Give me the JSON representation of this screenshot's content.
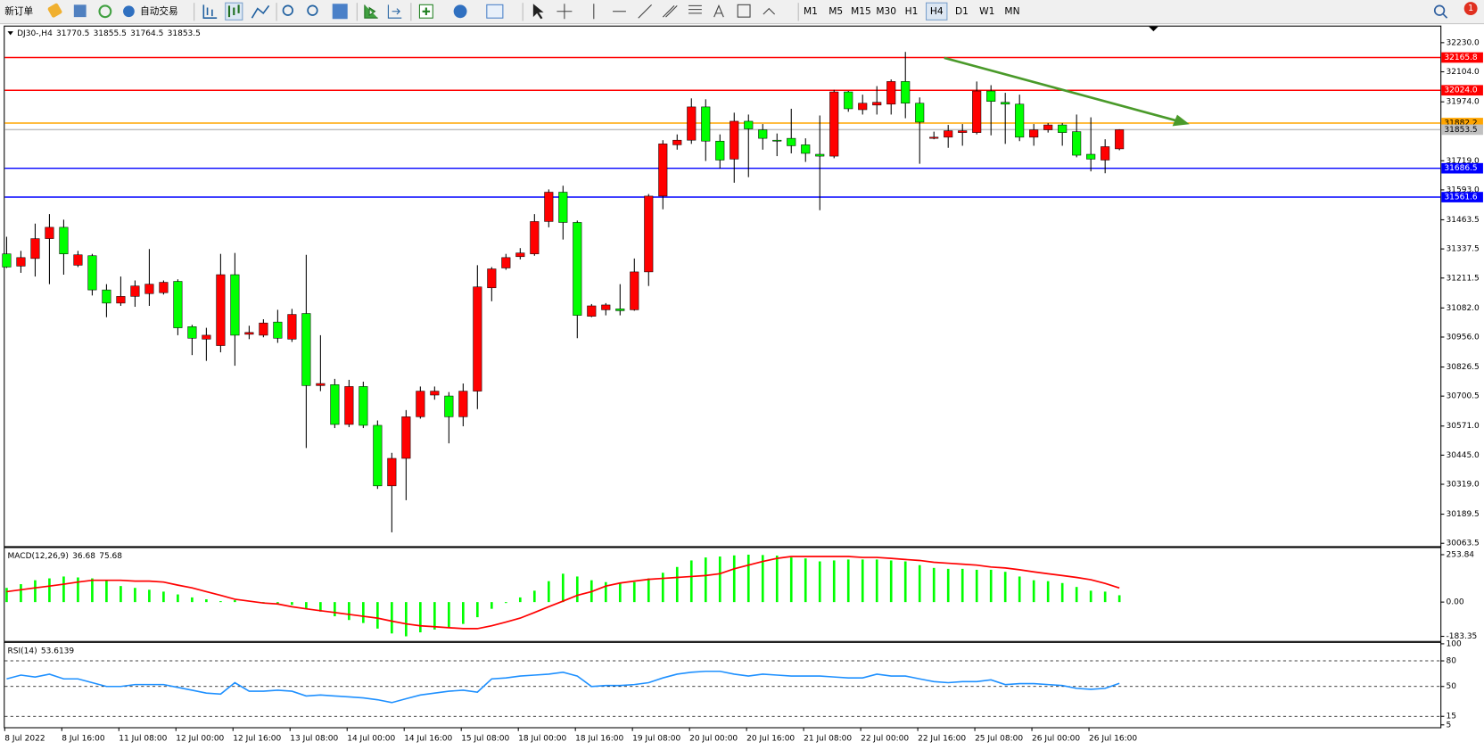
{
  "toolbar": {
    "buttons": [
      "新订单",
      "自动交易"
    ],
    "timeframes": [
      "M1",
      "M5",
      "M15",
      "M30",
      "H1",
      "H4",
      "D1",
      "W1",
      "MN"
    ],
    "active_timeframe": "H4",
    "notifications": 1
  },
  "chart_data": [
    {
      "type": "candlestick",
      "title": "DJ30-,H4",
      "categories": [
        "8 Jul 2022",
        null,
        null,
        null,
        "8 Jul 16:00",
        null,
        null,
        null,
        "11 Jul 08:00",
        null,
        null,
        null,
        "12 Jul 00:00",
        null,
        null,
        null,
        "12 Jul 16:00",
        null,
        null,
        null,
        "13 Jul 08:00",
        null,
        null,
        null,
        "14 Jul 00:00",
        null,
        null,
        null,
        "14 Jul 16:00",
        null,
        null,
        null,
        "15 Jul 08:00",
        null,
        null,
        null,
        "18 Jul 00:00",
        null,
        null,
        null,
        "18 Jul 16:00",
        null,
        null,
        null,
        "19 Jul 08:00",
        null,
        null,
        null,
        "20 Jul 00:00",
        null,
        null,
        null,
        "20 Jul 16:00",
        null,
        null,
        null,
        "21 Jul 08:00",
        null,
        null,
        null,
        "22 Jul 00:00",
        null,
        null,
        null,
        "22 Jul 16:00",
        null,
        null,
        null,
        "25 Jul 08:00",
        null,
        null,
        null,
        "26 Jul 00:00",
        null,
        null,
        null,
        "26 Jul 16:00",
        null,
        null
      ],
      "open": [
        31316,
        31263,
        31296,
        31382,
        31431,
        31267,
        31308,
        31160,
        31103,
        31132,
        31144,
        31148,
        31197,
        31001,
        30947,
        30919,
        31226,
        30968,
        30964,
        31021,
        30947,
        31058,
        30746,
        30750,
        30578,
        30742,
        30574,
        30312,
        30431,
        30611,
        30705,
        30701,
        30611,
        30722,
        31169,
        31255,
        31304,
        31316,
        31456,
        31583,
        31452,
        31046,
        31074,
        31078,
        31074,
        31238,
        31566,
        31788,
        31808,
        31952,
        31804,
        31726,
        31890,
        31853,
        31808,
        31816,
        31788,
        31747,
        31739,
        32017,
        31940,
        31960,
        31964,
        32062,
        31968,
        31816,
        31821,
        31841,
        31841,
        32021,
        31972,
        31964,
        31821,
        31853,
        31874,
        31845,
        31747,
        31722,
        31770.5
      ],
      "high": [
        31390,
        31329,
        31447,
        31488,
        31464,
        31329,
        31316,
        31185,
        31218,
        31201,
        31337,
        31201,
        31206,
        31009,
        30996,
        31316,
        31320,
        31005,
        31033,
        31074,
        31078,
        31312,
        30964,
        30775,
        30771,
        30763,
        30595,
        30455,
        30640,
        30742,
        30742,
        30718,
        30755,
        31267,
        31259,
        31316,
        31341,
        31488,
        31595,
        31611,
        31460,
        31099,
        31103,
        31185,
        31296,
        31575,
        31808,
        31833,
        31989,
        31985,
        31833,
        31927,
        31919,
        31878,
        31837,
        31944,
        31816,
        31915,
        32026,
        32021,
        32005,
        32042,
        32071,
        32190,
        31993,
        31845,
        31874,
        31878,
        32062,
        32046,
        32013,
        32005,
        31878,
        31882,
        31882,
        31919,
        31907,
        31812,
        31855.5
      ],
      "low": [
        31255,
        31234,
        31218,
        31185,
        31226,
        31259,
        31136,
        31042,
        31091,
        31087,
        31091,
        31140,
        30964,
        30878,
        30853,
        30890,
        30832,
        30947,
        30955,
        30931,
        30935,
        30476,
        30722,
        30562,
        30566,
        30562,
        30299,
        30111,
        30250,
        30603,
        30685,
        30496,
        30570,
        30644,
        31111,
        31247,
        31292,
        31308,
        31431,
        31378,
        30951,
        31042,
        31050,
        31050,
        31070,
        31177,
        31509,
        31767,
        31792,
        31718,
        31685,
        31624,
        31648,
        31767,
        31739,
        31751,
        31714,
        31505,
        31730,
        31931,
        31919,
        31919,
        31919,
        31903,
        31706,
        31812,
        31775,
        31784,
        31833,
        31829,
        31792,
        31804,
        31784,
        31841,
        31784,
        31734,
        31673,
        31665,
        31764.5
      ],
      "close": [
        31259,
        31300,
        31382,
        31431,
        31316,
        31312,
        31160,
        31103,
        31132,
        31177,
        31185,
        31193,
        30996,
        30951,
        30964,
        31226,
        30964,
        30976,
        31017,
        30951,
        31054,
        30746,
        30755,
        30578,
        30742,
        30574,
        30312,
        30431,
        30611,
        30722,
        30722,
        30611,
        30722,
        31173,
        31251,
        31300,
        31320,
        31456,
        31583,
        31452,
        31050,
        31091,
        31095,
        31070,
        31238,
        31566,
        31792,
        31808,
        31952,
        31804,
        31722,
        31890,
        31857,
        31816,
        31804,
        31784,
        31751,
        31739,
        32017,
        31944,
        31968,
        31972,
        32062,
        31968,
        31886,
        31821,
        31849,
        31849,
        32021,
        31976,
        31964,
        31821,
        31853,
        31874,
        31841,
        31743,
        31726,
        31780,
        31853.5
      ],
      "up_color": "#ff0000",
      "down_color": "#00ff00",
      "ylim": [
        30051.2,
        32299.8
      ],
      "yticks": [
        {
          "value": 32230,
          "label": "32230.0"
        },
        {
          "value": 32104,
          "label": "32104.0"
        },
        {
          "value": 31974,
          "label": "31974.0"
        },
        {
          "value": 31719,
          "label": "31719.0"
        },
        {
          "value": 31593,
          "label": "31593.0"
        },
        31463.5,
        31337.5,
        31211.5,
        {
          "value": 31082,
          "label": "31082.0"
        },
        {
          "value": 30956,
          "label": "30956.0"
        },
        30826.5,
        30700.5,
        {
          "value": 30571,
          "label": "30571.0"
        },
        {
          "value": 30445,
          "label": "30445.0"
        },
        {
          "value": 30319,
          "label": "30319.0"
        },
        30189.5,
        30063.5
      ],
      "price_lines": [
        {
          "value": 32165.8,
          "color": "#ff0000"
        },
        {
          "value": 32024,
          "label": "32024.0",
          "color": "#ff0000"
        },
        {
          "value": 31882.2,
          "color": "#ffa500"
        },
        {
          "value": 31853.5,
          "color": "#c0c0c0"
        },
        {
          "value": 31686.5,
          "color": "#0000ff"
        },
        {
          "value": 31561.6,
          "color": "#0000ff"
        }
      ]
    },
    {
      "type": "macd",
      "title": "MACD(12,26,9)",
      "values": [
        76,
        96,
        117,
        127,
        137,
        132,
        127,
        117,
        86,
        76,
        66,
        56,
        41,
        25,
        15,
        5,
        10,
        0,
        -5,
        -10,
        -15,
        -36,
        -51,
        -76,
        -96,
        -112,
        -142,
        -168,
        -183.35,
        -162,
        -147,
        -137,
        -117,
        -81,
        -36,
        -5,
        25,
        61,
        112,
        152,
        137,
        117,
        107,
        102,
        107,
        127,
        157,
        188,
        223,
        239,
        244,
        250,
        253.84,
        252,
        249,
        239,
        234,
        218,
        223,
        228,
        228,
        228,
        223,
        218,
        198,
        183,
        178,
        178,
        173,
        173,
        162,
        137,
        117,
        112,
        102,
        81,
        61,
        56,
        36.68
      ],
      "signal": [
        56,
        66,
        76,
        86,
        96,
        107,
        117,
        117,
        117,
        112,
        112,
        107,
        91,
        76,
        56,
        36,
        15,
        5,
        -5,
        -10,
        -25,
        -36,
        -46,
        -56,
        -66,
        -76,
        -86,
        -102,
        -117,
        -127,
        -132,
        -137,
        -142,
        -142,
        -127,
        -107,
        -86,
        -56,
        -25,
        5,
        36,
        56,
        86,
        102,
        112,
        122,
        127,
        132,
        137,
        142,
        152,
        178,
        198,
        218,
        234,
        244,
        244,
        244,
        244,
        244,
        239,
        239,
        234,
        228,
        223,
        213,
        208,
        203,
        198,
        188,
        183,
        173,
        162,
        152,
        142,
        132,
        120,
        100,
        75.68
      ],
      "color": "#00ff00",
      "signal_color": "#ff0000",
      "ylim": [
        -208.2,
        289.4
      ],
      "yticks": [
        253.84,
        {
          "value": 0,
          "label": "0.00"
        },
        -183.35
      ]
    },
    {
      "type": "rsi",
      "title": "RSI(14)",
      "values": [
        58.9,
        63.3,
        61.1,
        64.4,
        58.9,
        58.9,
        54.4,
        50.0,
        50.0,
        52.2,
        52.2,
        52.2,
        48.9,
        45.6,
        42.2,
        41.1,
        54.4,
        44.4,
        44.4,
        45.6,
        44.4,
        38.9,
        40.0,
        38.9,
        37.8,
        36.7,
        34.4,
        31.1,
        35.6,
        40.0,
        42.2,
        44.4,
        45.6,
        43.3,
        58.9,
        60.0,
        62.2,
        63.3,
        64.4,
        66.7,
        62.2,
        50.0,
        51.1,
        51.1,
        52.2,
        54.4,
        60.0,
        64.4,
        66.7,
        67.8,
        67.8,
        64.4,
        62.2,
        64.4,
        63.3,
        62.2,
        62.2,
        62.2,
        61.1,
        60.0,
        60.0,
        64.4,
        62.2,
        62.2,
        58.9,
        55.6,
        54.4,
        55.6,
        55.6,
        57.8,
        52.2,
        53.3,
        53.3,
        52.2,
        51.1,
        47.8,
        46.7,
        47.8,
        53.6139
      ],
      "color": "#1e90ff",
      "ylim": [
        2.2,
        101.1
      ],
      "yticks": [
        100,
        80,
        50,
        15,
        5
      ],
      "levels": [
        80,
        50,
        15
      ]
    }
  ]
}
